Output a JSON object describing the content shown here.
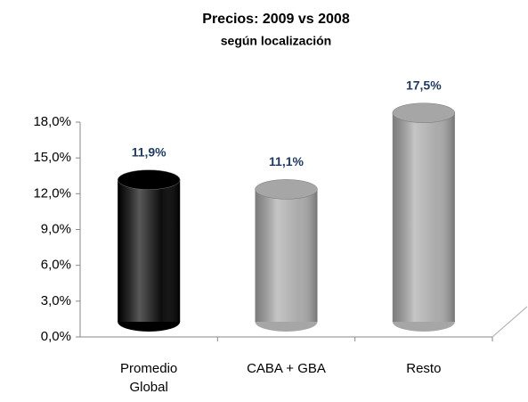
{
  "chart_data": {
    "type": "bar",
    "title": "Precios: 2009 vs 2008",
    "subtitle": "según localización",
    "categories": [
      "Promedio Global",
      "CABA + GBA",
      "Resto"
    ],
    "values": [
      11.9,
      11.1,
      17.5
    ],
    "value_labels": [
      "11,9%",
      "11,1%",
      "17,5%"
    ],
    "colors": [
      "#000000",
      "#a6a6a6",
      "#a6a6a6"
    ],
    "ylim": [
      0,
      18
    ],
    "yticks": [
      {
        "value": 0,
        "label": "0,0%"
      },
      {
        "value": 3,
        "label": "3,0%"
      },
      {
        "value": 6,
        "label": "6,0%"
      },
      {
        "value": 9,
        "label": "9,0%"
      },
      {
        "value": 12,
        "label": "12,0%"
      },
      {
        "value": 15,
        "label": "15,0%"
      },
      {
        "value": 18,
        "label": "18,0%"
      }
    ],
    "grid": false
  }
}
